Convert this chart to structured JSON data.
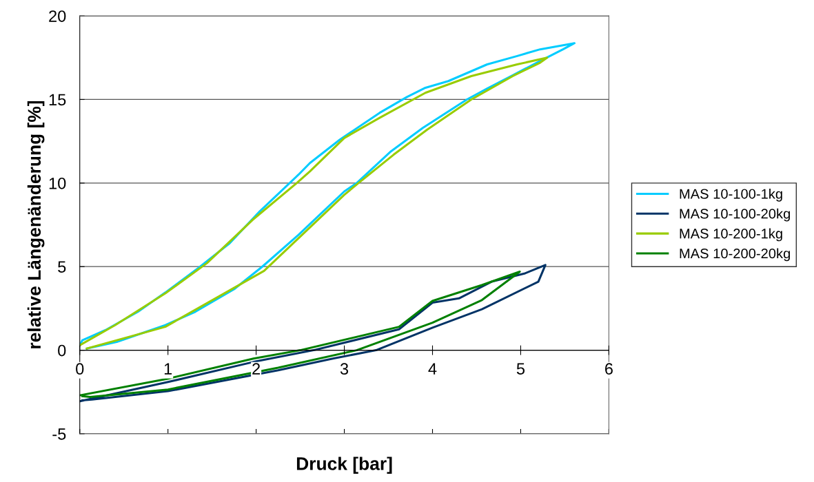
{
  "chart_data": {
    "type": "line",
    "xlabel": "Druck [bar]",
    "ylabel": "relative Längenänderung [%]",
    "xlim": [
      0,
      6
    ],
    "ylim": [
      -5,
      20
    ],
    "xticks": [
      0,
      1,
      2,
      3,
      4,
      5,
      6
    ],
    "yticks": [
      -5,
      0,
      5,
      10,
      15,
      20
    ],
    "grid": "y",
    "legend": "right",
    "marker": "none",
    "line_style": "solid",
    "series": [
      {
        "name": "MAS 10-100-1kg",
        "color": "#00ccff",
        "x": [
          0.08,
          0.42,
          0.97,
          1.31,
          1.75,
          2.07,
          2.48,
          3.0,
          3.14,
          3.53,
          3.89,
          4.39,
          4.62,
          4.91,
          5.22,
          5.48,
          5.61,
          5.22,
          4.96,
          4.62,
          4.18,
          3.92,
          3.71,
          3.4,
          2.95,
          2.61,
          2.48,
          2.04,
          1.7,
          1.34,
          0.97,
          0.66,
          0.29,
          0.03,
          0.0
        ],
        "values": [
          0.1,
          0.5,
          1.5,
          2.3,
          3.65,
          5.0,
          6.9,
          9.5,
          10.0,
          11.9,
          13.3,
          15.0,
          15.65,
          16.45,
          17.3,
          18.0,
          18.37,
          18.0,
          17.6,
          17.1,
          16.1,
          15.7,
          15.15,
          14.2,
          12.6,
          11.2,
          10.5,
          8.3,
          6.4,
          4.9,
          3.45,
          2.3,
          1.2,
          0.6,
          0.3
        ]
      },
      {
        "name": "MAS 10-100-20kg",
        "color": "#003366",
        "x": [
          0.0,
          1.0,
          1.97,
          2.65,
          3.62,
          4.0,
          4.3,
          4.67,
          5.05,
          5.28,
          5.2,
          4.56,
          4.0,
          3.36,
          2.87,
          2.25,
          1.0,
          0.14,
          0.03
        ],
        "values": [
          -3.05,
          -1.9,
          -0.7,
          0.0,
          1.25,
          2.85,
          3.1,
          4.1,
          4.6,
          5.1,
          4.1,
          2.45,
          1.35,
          0.0,
          -0.5,
          -1.2,
          -2.45,
          -2.95,
          -3.0
        ]
      },
      {
        "name": "MAS 10-200-1kg",
        "color": "#99cc00",
        "x": [
          0.08,
          0.97,
          2.09,
          3.0,
          3.16,
          3.56,
          3.94,
          4.44,
          4.91,
          5.22,
          5.3,
          4.96,
          4.44,
          3.92,
          3.4,
          3.0,
          2.61,
          2.46,
          1.96,
          1.44,
          0.97,
          0.4,
          0.0
        ],
        "values": [
          0.1,
          1.4,
          4.75,
          9.3,
          10.0,
          11.7,
          13.2,
          15.0,
          16.4,
          17.2,
          17.5,
          17.1,
          16.4,
          15.4,
          13.9,
          12.7,
          10.7,
          10.0,
          7.8,
          5.2,
          3.4,
          1.5,
          0.3
        ]
      },
      {
        "name": "MAS 10-200-20kg",
        "color": "#008000",
        "x": [
          0.0,
          1.0,
          1.97,
          2.5,
          3.62,
          4.0,
          4.56,
          4.99,
          4.56,
          4.0,
          3.14,
          2.25,
          1.0,
          0.12,
          0.03
        ],
        "values": [
          -2.7,
          -1.7,
          -0.5,
          0.0,
          1.4,
          2.95,
          3.9,
          4.7,
          3.0,
          1.65,
          0.0,
          -1.05,
          -2.35,
          -2.8,
          -2.75
        ]
      }
    ]
  }
}
